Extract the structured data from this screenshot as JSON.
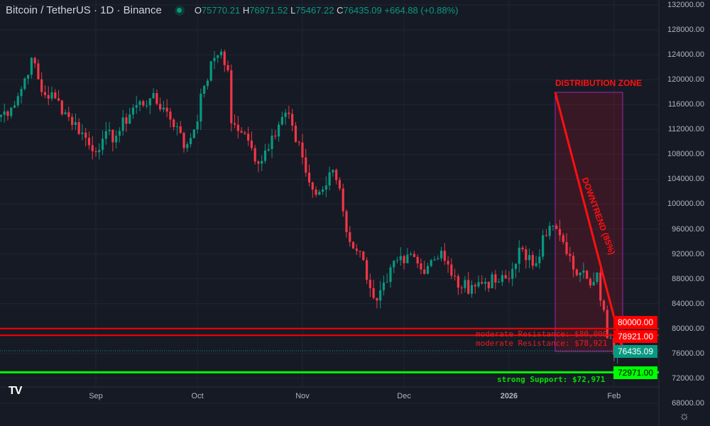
{
  "header": {
    "symbol": "Bitcoin / TetherUS · 1D · Binance",
    "open_label": "O",
    "open": "75770.21",
    "high_label": "H",
    "high": "76971.52",
    "low_label": "L",
    "low": "75467.22",
    "close_label": "C",
    "close": "76435.09",
    "change": "+664.88 (+0.88%)"
  },
  "colors": {
    "bg": "#161a25",
    "up": "#089981",
    "down": "#f23645",
    "resistance": "#ff0000",
    "support": "#00ff00",
    "zone_border": "#9c27b0"
  },
  "axis": {
    "price_labels": [
      "132000.00",
      "128000.00",
      "124000.00",
      "120000.00",
      "116000.00",
      "112000.00",
      "108000.00",
      "104000.00",
      "100000.00",
      "96000.00",
      "92000.00",
      "88000.00",
      "84000.00",
      "80000.00",
      "76000.00",
      "72000.00",
      "68000.00"
    ],
    "time_labels": [
      {
        "label": "Sep",
        "day": 29
      },
      {
        "label": "Oct",
        "day": 59
      },
      {
        "label": "Nov",
        "day": 90
      },
      {
        "label": "Dec",
        "day": 120
      },
      {
        "label": "2026",
        "day": 151
      },
      {
        "label": "Feb",
        "day": 182
      }
    ]
  },
  "tags": {
    "r1": "80000.00",
    "r2": "78921.00",
    "last": "76435.09",
    "support": "72971.00"
  },
  "annotations": {
    "zone": "DISTRIBUTION ZONE",
    "trend": "DOWNTREND (85%)",
    "res1": "moderate Resistance: $80,000",
    "res2": "moderate Resistance: $78,921",
    "support": "strong Support: $72,971"
  },
  "chart_data": {
    "type": "candlestick",
    "title": "Bitcoin / TetherUS · 1D · Binance",
    "ylim": [
      68000,
      132000
    ],
    "first_day": "2025-08-03",
    "last_day": "2026-02-03",
    "close_keypoints": [
      [
        0,
        114000
      ],
      [
        4,
        115500
      ],
      [
        7,
        118500
      ],
      [
        10,
        123500
      ],
      [
        13,
        118000
      ],
      [
        17,
        117000
      ],
      [
        21,
        114000
      ],
      [
        25,
        111500
      ],
      [
        28,
        108500
      ],
      [
        31,
        110500
      ],
      [
        35,
        111000
      ],
      [
        40,
        115500
      ],
      [
        45,
        117000
      ],
      [
        49,
        115500
      ],
      [
        53,
        112500
      ],
      [
        55,
        109000
      ],
      [
        58,
        112000
      ],
      [
        61,
        119000
      ],
      [
        64,
        123500
      ],
      [
        66,
        124500
      ],
      [
        68,
        121500
      ],
      [
        69,
        113000
      ],
      [
        72,
        111500
      ],
      [
        75,
        109000
      ],
      [
        77,
        106500
      ],
      [
        81,
        111000
      ],
      [
        84,
        114000
      ],
      [
        86,
        114500
      ],
      [
        88,
        110000
      ],
      [
        90,
        107500
      ],
      [
        92,
        103500
      ],
      [
        94,
        101500
      ],
      [
        97,
        103000
      ],
      [
        99,
        105500
      ],
      [
        101,
        102500
      ],
      [
        103,
        95500
      ],
      [
        106,
        92500
      ],
      [
        108,
        91000
      ],
      [
        110,
        86500
      ],
      [
        112,
        84500
      ],
      [
        115,
        87500
      ],
      [
        118,
        91000
      ],
      [
        120,
        90500
      ],
      [
        122,
        92000
      ],
      [
        125,
        89500
      ],
      [
        128,
        91000
      ],
      [
        131,
        92500
      ],
      [
        134,
        88500
      ],
      [
        137,
        86500
      ],
      [
        140,
        87000
      ],
      [
        144,
        87500
      ],
      [
        148,
        87500
      ],
      [
        151,
        88000
      ],
      [
        154,
        93000
      ],
      [
        156,
        91000
      ],
      [
        159,
        90500
      ],
      [
        161,
        95000
      ],
      [
        163,
        96500
      ],
      [
        166,
        95000
      ],
      [
        168,
        92000
      ],
      [
        170,
        89500
      ],
      [
        172,
        89000
      ],
      [
        174,
        88000
      ],
      [
        176,
        87500
      ],
      [
        177,
        89000
      ],
      [
        178,
        84500
      ],
      [
        179,
        83000
      ],
      [
        180,
        78500
      ],
      [
        181,
        78500
      ],
      [
        182,
        75800
      ],
      [
        183,
        76435
      ]
    ]
  }
}
